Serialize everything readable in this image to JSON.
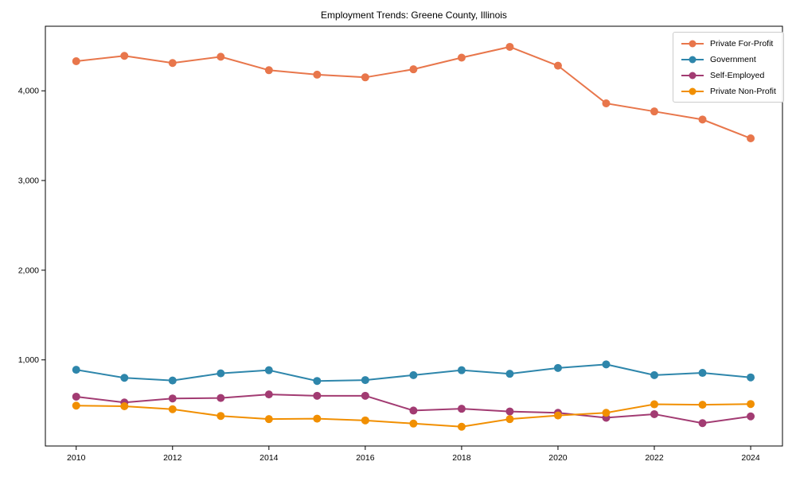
{
  "chart_data": {
    "type": "line",
    "title": "Employment Trends: Greene County, Illinois",
    "x": [
      2010,
      2011,
      2012,
      2013,
      2014,
      2015,
      2016,
      2017,
      2018,
      2019,
      2020,
      2021,
      2022,
      2023,
      2024
    ],
    "series": [
      {
        "name": "Private For-Profit",
        "color": "#E8764B",
        "values": [
          4330,
          4390,
          4310,
          4380,
          4230,
          4180,
          4150,
          4240,
          4370,
          4490,
          4280,
          3860,
          3770,
          3680,
          3470
        ]
      },
      {
        "name": "Government",
        "color": "#2E86AB",
        "values": [
          890,
          800,
          770,
          850,
          885,
          765,
          775,
          830,
          885,
          845,
          910,
          950,
          830,
          855,
          805
        ]
      },
      {
        "name": "Self-Employed",
        "color": "#A23B72",
        "values": [
          590,
          525,
          570,
          575,
          615,
          600,
          600,
          435,
          455,
          425,
          410,
          355,
          395,
          295,
          370
        ]
      },
      {
        "name": "Private Non-Profit",
        "color": "#F18F01",
        "values": [
          490,
          483,
          450,
          375,
          340,
          345,
          325,
          290,
          255,
          340,
          380,
          410,
          505,
          500,
          508
        ]
      }
    ],
    "xticks": {
      "values": [
        2010,
        2012,
        2014,
        2016,
        2018,
        2020,
        2022,
        2024
      ],
      "labels": [
        "2010",
        "2012",
        "2014",
        "2016",
        "2018",
        "2020",
        "2022",
        "2024"
      ]
    },
    "yticks": {
      "values": [
        1000,
        2000,
        3000,
        4000
      ],
      "labels": [
        "1,000",
        "2,000",
        "3,000",
        "4,000"
      ]
    },
    "xlim": [
      2009.36,
      2024.66
    ],
    "ylim": [
      40,
      4720
    ],
    "grid": false,
    "legend_position": "upper right",
    "axis_color": "#000000",
    "marker": "circle",
    "marker_radius": 5,
    "line_width": 2
  }
}
